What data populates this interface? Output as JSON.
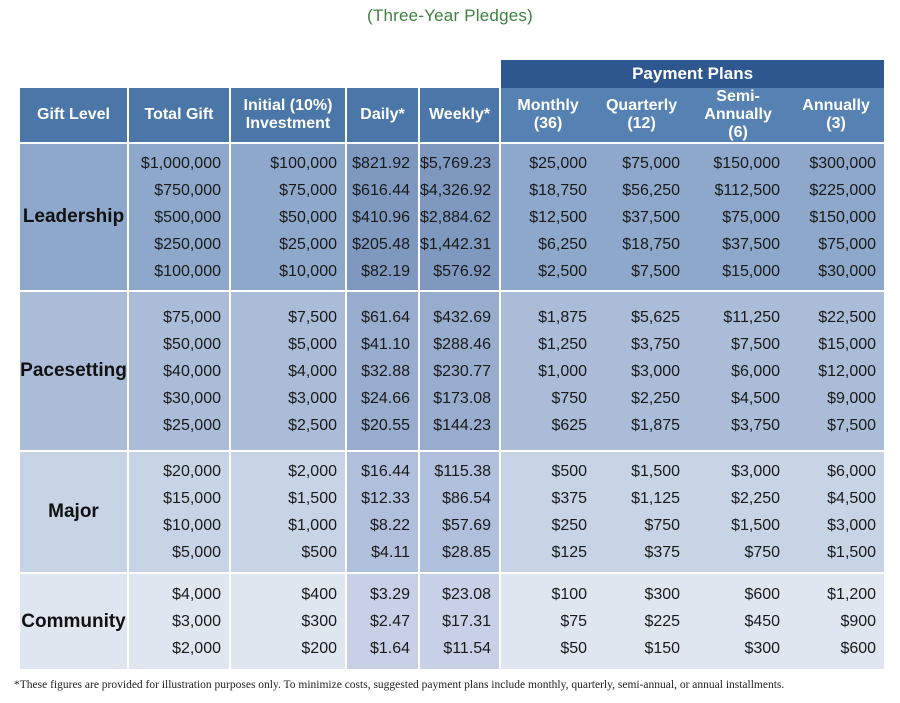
{
  "subtitle": "(Three-Year Pledges)",
  "payment_plans_label": "Payment Plans",
  "headers": {
    "gift_level": "Gift Level",
    "total_gift": "Total Gift",
    "initial_l1": "Initial (10%)",
    "initial_l2": "Investment",
    "daily": "Daily*",
    "weekly": "Weekly*",
    "monthly_l1": "Monthly",
    "monthly_l2": "(36)",
    "quarterly_l1": "Quarterly",
    "quarterly_l2": "(12)",
    "semi_l1": "Semi-Annually",
    "semi_l2": "(6)",
    "annual_l1": "Annually",
    "annual_l2": "(3)"
  },
  "groups": [
    {
      "level": "Leadership",
      "total": [
        "$1,000,000",
        "$750,000",
        "$500,000",
        "$250,000",
        "$100,000"
      ],
      "initial": [
        "$100,000",
        "$75,000",
        "$50,000",
        "$25,000",
        "$10,000"
      ],
      "daily": [
        "$821.92",
        "$616.44",
        "$410.96",
        "$205.48",
        "$82.19"
      ],
      "weekly": [
        "$5,769.23",
        "$4,326.92",
        "$2,884.62",
        "$1,442.31",
        "$576.92"
      ],
      "monthly": [
        "$25,000",
        "$18,750",
        "$12,500",
        "$6,250",
        "$2,500"
      ],
      "quarterly": [
        "$75,000",
        "$56,250",
        "$37,500",
        "$18,750",
        "$7,500"
      ],
      "semi": [
        "$150,000",
        "$112,500",
        "$75,000",
        "$37,500",
        "$15,000"
      ],
      "annual": [
        "$300,000",
        "$225,000",
        "$150,000",
        "$75,000",
        "$30,000"
      ]
    },
    {
      "level": "Pacesetting",
      "total": [
        "$75,000",
        "$50,000",
        "$40,000",
        "$30,000",
        "$25,000"
      ],
      "initial": [
        "$7,500",
        "$5,000",
        "$4,000",
        "$3,000",
        "$2,500"
      ],
      "daily": [
        "$61.64",
        "$41.10",
        "$32.88",
        "$24.66",
        "$20.55"
      ],
      "weekly": [
        "$432.69",
        "$288.46",
        "$230.77",
        "$173.08",
        "$144.23"
      ],
      "monthly": [
        "$1,875",
        "$1,250",
        "$1,000",
        "$750",
        "$625"
      ],
      "quarterly": [
        "$5,625",
        "$3,750",
        "$3,000",
        "$2,250",
        "$1,875"
      ],
      "semi": [
        "$11,250",
        "$7,500",
        "$6,000",
        "$4,500",
        "$3,750"
      ],
      "annual": [
        "$22,500",
        "$15,000",
        "$12,000",
        "$9,000",
        "$7,500"
      ]
    },
    {
      "level": "Major",
      "total": [
        "$20,000",
        "$15,000",
        "$10,000",
        "$5,000"
      ],
      "initial": [
        "$2,000",
        "$1,500",
        "$1,000",
        "$500"
      ],
      "daily": [
        "$16.44",
        "$12.33",
        "$8.22",
        "$4.11"
      ],
      "weekly": [
        "$115.38",
        "$86.54",
        "$57.69",
        "$28.85"
      ],
      "monthly": [
        "$500",
        "$375",
        "$250",
        "$125"
      ],
      "quarterly": [
        "$1,500",
        "$1,125",
        "$750",
        "$375"
      ],
      "semi": [
        "$3,000",
        "$2,250",
        "$1,500",
        "$750"
      ],
      "annual": [
        "$6,000",
        "$4,500",
        "$3,000",
        "$1,500"
      ]
    },
    {
      "level": "Community",
      "total": [
        "$4,000",
        "$3,000",
        "$2,000"
      ],
      "initial": [
        "$400",
        "$300",
        "$200"
      ],
      "daily": [
        "$3.29",
        "$2.47",
        "$1.64"
      ],
      "weekly": [
        "$23.08",
        "$17.31",
        "$11.54"
      ],
      "monthly": [
        "$100",
        "$75",
        "$50"
      ],
      "quarterly": [
        "$300",
        "$225",
        "$150"
      ],
      "semi": [
        "$600",
        "$450",
        "$300"
      ],
      "annual": [
        "$1,200",
        "$900",
        "$600"
      ]
    }
  ],
  "footnote": "*These figures are provided for illustration purposes only. To minimize costs, suggested payment plans include monthly, quarterly, semi-annual, or annual installments."
}
